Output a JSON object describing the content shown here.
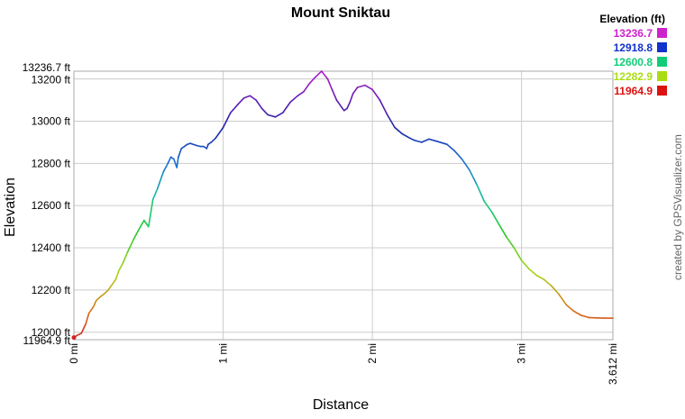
{
  "chart_data": {
    "type": "line",
    "title": "Mount Sniktau",
    "xlabel": "Distance",
    "ylabel": "Elevation",
    "credit": "created by GPSVisualizer.com",
    "x_unit": "mi",
    "y_unit": "ft",
    "xlim": [
      0,
      3.612
    ],
    "ylim": [
      11964.9,
      13236.7
    ],
    "grid": true,
    "x_ticks": [
      {
        "value": 0,
        "label": "0 mi"
      },
      {
        "value": 1,
        "label": "1 mi"
      },
      {
        "value": 2,
        "label": "2 mi"
      },
      {
        "value": 3,
        "label": "3 mi"
      },
      {
        "value": 3.612,
        "label": "3.612 mi"
      }
    ],
    "y_ticks": [
      {
        "value": 11964.9,
        "label": "11964.9 ft"
      },
      {
        "value": 12000,
        "label": "12000 ft"
      },
      {
        "value": 12200,
        "label": "12200 ft"
      },
      {
        "value": 12400,
        "label": "12400 ft"
      },
      {
        "value": 12600,
        "label": "12600 ft"
      },
      {
        "value": 12800,
        "label": "12800 ft"
      },
      {
        "value": 13000,
        "label": "13000 ft"
      },
      {
        "value": 13200,
        "label": "13200 ft"
      },
      {
        "value": 13236.7,
        "label": "13236.7 ft"
      }
    ],
    "legend": {
      "title": "Elevation (ft)",
      "placement": "top-right",
      "entries": [
        {
          "label": "13236.7",
          "color": "#cc22cc"
        },
        {
          "label": "12918.8",
          "color": "#1133cc"
        },
        {
          "label": "12600.8",
          "color": "#11cc77"
        },
        {
          "label": "12282.9",
          "color": "#aadd11"
        },
        {
          "label": "11964.9",
          "color": "#dd1111"
        }
      ]
    },
    "series": [
      {
        "color_mode": "elevation-gradient",
        "x": [
          0,
          0.02,
          0.05,
          0.08,
          0.1,
          0.13,
          0.15,
          0.18,
          0.2,
          0.23,
          0.25,
          0.28,
          0.3,
          0.33,
          0.36,
          0.4,
          0.43,
          0.47,
          0.5,
          0.53,
          0.56,
          0.6,
          0.63,
          0.65,
          0.67,
          0.69,
          0.7,
          0.72,
          0.74,
          0.76,
          0.78,
          0.8,
          0.82,
          0.85,
          0.87,
          0.89,
          0.9,
          0.92,
          0.95,
          1.0,
          1.05,
          1.1,
          1.14,
          1.18,
          1.22,
          1.26,
          1.3,
          1.35,
          1.4,
          1.45,
          1.5,
          1.54,
          1.58,
          1.62,
          1.66,
          1.7,
          1.73,
          1.76,
          1.79,
          1.81,
          1.83,
          1.85,
          1.87,
          1.9,
          1.95,
          2.0,
          2.05,
          2.1,
          2.15,
          2.2,
          2.25,
          2.28,
          2.33,
          2.38,
          2.43,
          2.5,
          2.55,
          2.6,
          2.65,
          2.7,
          2.75,
          2.8,
          2.85,
          2.9,
          2.95,
          3.0,
          3.05,
          3.1,
          3.15,
          3.2,
          3.25,
          3.3,
          3.35,
          3.4,
          3.45,
          3.5,
          3.55,
          3.612
        ],
        "y": [
          11975,
          11985,
          11995,
          12040,
          12090,
          12120,
          12150,
          12170,
          12180,
          12200,
          12220,
          12250,
          12290,
          12330,
          12380,
          12440,
          12480,
          12530,
          12500,
          12630,
          12680,
          12760,
          12800,
          12830,
          12820,
          12780,
          12830,
          12870,
          12880,
          12890,
          12895,
          12890,
          12885,
          12880,
          12880,
          12870,
          12890,
          12900,
          12920,
          12970,
          13040,
          13080,
          13110,
          13120,
          13100,
          13060,
          13030,
          13020,
          13040,
          13090,
          13120,
          13140,
          13180,
          13210,
          13236.7,
          13200,
          13150,
          13100,
          13070,
          13050,
          13060,
          13090,
          13130,
          13160,
          13170,
          13150,
          13100,
          13030,
          12970,
          12940,
          12920,
          12910,
          12900,
          12915,
          12905,
          12890,
          12860,
          12820,
          12770,
          12700,
          12620,
          12570,
          12510,
          12450,
          12400,
          12340,
          12300,
          12270,
          12250,
          12220,
          12180,
          12130,
          12100,
          12080,
          12070,
          12068,
          12067,
          12067
        ]
      }
    ]
  }
}
